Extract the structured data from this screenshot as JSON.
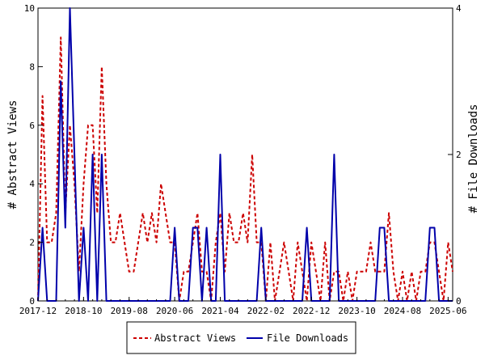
{
  "chart_data": {
    "type": "line",
    "x_tick_labels": [
      "2017-12",
      "2018-10",
      "2019-08",
      "2020-06",
      "2021-04",
      "2022-02",
      "2022-12",
      "2023-10",
      "2024-08",
      "2025-06"
    ],
    "y_left": {
      "label": "# Abstract Views",
      "min": 0,
      "max": 10,
      "ticks": [
        "0",
        "2",
        "4",
        "6",
        "8",
        "10"
      ]
    },
    "y_right": {
      "label": "# File Downloads",
      "min": 0,
      "max": 4,
      "ticks": [
        "0",
        "2",
        "4"
      ]
    },
    "grid": false,
    "legend_position": "bottom",
    "series": [
      {
        "name": "Abstract Views",
        "axis": "left",
        "color": "#cc0000",
        "style": "dashed",
        "x": [
          "2017-12",
          "2018-01",
          "2018-02",
          "2018-03",
          "2018-04",
          "2018-05",
          "2018-06",
          "2018-07",
          "2018-08",
          "2018-09",
          "2018-10",
          "2018-11",
          "2018-12",
          "2019-01",
          "2019-02",
          "2019-03",
          "2019-04",
          "2019-05",
          "2019-06",
          "2019-07",
          "2019-08",
          "2019-09",
          "2019-10",
          "2019-11",
          "2019-12",
          "2020-01",
          "2020-02",
          "2020-03",
          "2020-04",
          "2020-05",
          "2020-06",
          "2020-07",
          "2020-08",
          "2020-09",
          "2020-10",
          "2020-11",
          "2020-12",
          "2021-01",
          "2021-02",
          "2021-03",
          "2021-04",
          "2021-05",
          "2021-06",
          "2021-07",
          "2021-08",
          "2021-09",
          "2021-10",
          "2021-11",
          "2021-12",
          "2022-01",
          "2022-02",
          "2022-03",
          "2022-04",
          "2022-05",
          "2022-06",
          "2022-07",
          "2022-08",
          "2022-09",
          "2022-10",
          "2022-11",
          "2022-12",
          "2023-01",
          "2023-02",
          "2023-03",
          "2023-04",
          "2023-05",
          "2023-06",
          "2023-07",
          "2023-08",
          "2023-09",
          "2023-10",
          "2023-11",
          "2023-12",
          "2024-01",
          "2024-02",
          "2024-03",
          "2024-04",
          "2024-05",
          "2024-06",
          "2024-07",
          "2024-08",
          "2024-09",
          "2024-10",
          "2024-11",
          "2024-12",
          "2025-01",
          "2025-02",
          "2025-03",
          "2025-04",
          "2025-05",
          "2025-06",
          "2025-07"
        ],
        "values": [
          0,
          7,
          2,
          2,
          3,
          9,
          3,
          6,
          4,
          1,
          4,
          6,
          6,
          3,
          8,
          4,
          2,
          2,
          3,
          2,
          1,
          1,
          2,
          3,
          2,
          3,
          2,
          4,
          3,
          2,
          2,
          0,
          1,
          1,
          2,
          3,
          1,
          1,
          0,
          2,
          3,
          1,
          3,
          2,
          2,
          3,
          2,
          5,
          2,
          2,
          0,
          2,
          0,
          1,
          2,
          1,
          0,
          2,
          1,
          0,
          2,
          1,
          0,
          2,
          0,
          1,
          1,
          0,
          1,
          0,
          1,
          1,
          1,
          2,
          1,
          1,
          1,
          3,
          1,
          0,
          1,
          0,
          1,
          0,
          1,
          1,
          2,
          2,
          1,
          0,
          2,
          1
        ]
      },
      {
        "name": "File Downloads",
        "axis": "right",
        "color": "#0000aa",
        "style": "solid",
        "x": [
          "2017-12",
          "2018-01",
          "2018-02",
          "2018-03",
          "2018-04",
          "2018-05",
          "2018-06",
          "2018-07",
          "2018-08",
          "2018-09",
          "2018-10",
          "2018-11",
          "2018-12",
          "2019-01",
          "2019-02",
          "2019-03",
          "2019-04",
          "2019-05",
          "2019-06",
          "2019-07",
          "2019-08",
          "2019-09",
          "2019-10",
          "2019-11",
          "2019-12",
          "2020-01",
          "2020-02",
          "2020-03",
          "2020-04",
          "2020-05",
          "2020-06",
          "2020-07",
          "2020-08",
          "2020-09",
          "2020-10",
          "2020-11",
          "2020-12",
          "2021-01",
          "2021-02",
          "2021-03",
          "2021-04",
          "2021-05",
          "2021-06",
          "2021-07",
          "2021-08",
          "2021-09",
          "2021-10",
          "2021-11",
          "2021-12",
          "2022-01",
          "2022-02",
          "2022-03",
          "2022-04",
          "2022-05",
          "2022-06",
          "2022-07",
          "2022-08",
          "2022-09",
          "2022-10",
          "2022-11",
          "2022-12",
          "2023-01",
          "2023-02",
          "2023-03",
          "2023-04",
          "2023-05",
          "2023-06",
          "2023-07",
          "2023-08",
          "2023-09",
          "2023-10",
          "2023-11",
          "2023-12",
          "2024-01",
          "2024-02",
          "2024-03",
          "2024-04",
          "2024-05",
          "2024-06",
          "2024-07",
          "2024-08",
          "2024-09",
          "2024-10",
          "2024-11",
          "2024-12",
          "2025-01",
          "2025-02",
          "2025-03",
          "2025-04",
          "2025-05",
          "2025-06",
          "2025-07"
        ],
        "values": [
          0,
          1,
          0,
          0,
          0,
          3,
          1,
          4,
          2,
          0,
          1,
          0,
          2,
          0,
          2,
          0,
          0,
          0,
          0,
          0,
          0,
          0,
          0,
          0,
          0,
          0,
          0,
          0,
          0,
          0,
          1,
          0,
          0,
          0,
          1,
          1,
          0,
          1,
          0,
          0,
          2,
          0,
          0,
          0,
          0,
          0,
          0,
          0,
          0,
          1,
          0,
          0,
          0,
          0,
          0,
          0,
          0,
          0,
          0,
          1,
          0,
          0,
          0,
          0,
          0,
          2,
          0,
          0,
          0,
          0,
          0,
          0,
          0,
          0,
          0,
          1,
          1,
          0,
          0,
          0,
          0,
          0,
          0,
          0,
          0,
          0,
          1,
          1,
          0,
          0,
          0,
          0
        ]
      }
    ]
  }
}
